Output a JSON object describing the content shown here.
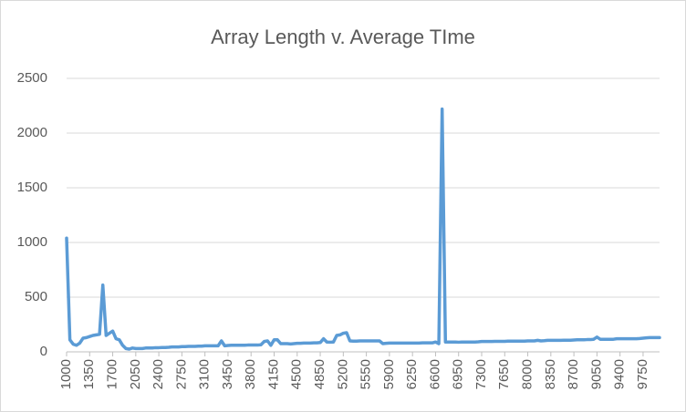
{
  "chart_data": {
    "type": "line",
    "title": "Array Length v. Average TIme",
    "x": [
      1000,
      1050,
      1100,
      1150,
      1200,
      1250,
      1300,
      1350,
      1400,
      1450,
      1500,
      1550,
      1600,
      1650,
      1700,
      1750,
      1800,
      1850,
      1900,
      1950,
      2000,
      2050,
      2100,
      2150,
      2200,
      2250,
      2300,
      2350,
      2400,
      2450,
      2500,
      2550,
      2600,
      2650,
      2700,
      2750,
      2800,
      2850,
      2900,
      2950,
      3000,
      3050,
      3100,
      3150,
      3200,
      3250,
      3300,
      3350,
      3400,
      3450,
      3500,
      3550,
      3600,
      3650,
      3700,
      3750,
      3800,
      3850,
      3900,
      3950,
      4000,
      4050,
      4100,
      4150,
      4200,
      4250,
      4300,
      4350,
      4400,
      4450,
      4500,
      4550,
      4600,
      4650,
      4700,
      4750,
      4800,
      4850,
      4900,
      4950,
      5000,
      5050,
      5100,
      5150,
      5200,
      5250,
      5300,
      5350,
      5400,
      5450,
      5500,
      5550,
      5600,
      5650,
      5700,
      5750,
      5800,
      5850,
      5900,
      5950,
      6000,
      6050,
      6100,
      6150,
      6200,
      6250,
      6300,
      6350,
      6400,
      6450,
      6500,
      6550,
      6600,
      6650,
      6700,
      6750,
      6800,
      6850,
      6900,
      6950,
      7000,
      7050,
      7100,
      7150,
      7200,
      7250,
      7300,
      7350,
      7400,
      7450,
      7500,
      7550,
      7600,
      7650,
      7700,
      7750,
      7800,
      7850,
      7900,
      7950,
      8000,
      8050,
      8100,
      8150,
      8200,
      8250,
      8300,
      8350,
      8400,
      8450,
      8500,
      8550,
      8600,
      8650,
      8700,
      8750,
      8800,
      8850,
      8900,
      8950,
      9000,
      9050,
      9100,
      9150,
      9200,
      9250,
      9300,
      9350,
      9400,
      9450,
      9500,
      9550,
      9600,
      9650,
      9700,
      9750,
      9800,
      9850,
      9900,
      9950,
      10000
    ],
    "values": [
      1040,
      110,
      70,
      60,
      80,
      125,
      130,
      140,
      150,
      155,
      160,
      610,
      150,
      170,
      190,
      120,
      110,
      60,
      30,
      25,
      35,
      30,
      30,
      30,
      35,
      35,
      35,
      38,
      38,
      40,
      40,
      42,
      45,
      45,
      45,
      48,
      48,
      50,
      50,
      50,
      52,
      52,
      55,
      55,
      55,
      55,
      55,
      100,
      55,
      58,
      60,
      60,
      60,
      60,
      60,
      62,
      62,
      62,
      62,
      65,
      95,
      100,
      60,
      110,
      110,
      75,
      75,
      75,
      72,
      75,
      78,
      78,
      80,
      80,
      80,
      82,
      82,
      85,
      120,
      90,
      88,
      90,
      150,
      155,
      170,
      175,
      100,
      98,
      98,
      100,
      100,
      100,
      100,
      100,
      100,
      100,
      75,
      78,
      80,
      80,
      80,
      80,
      80,
      80,
      80,
      80,
      80,
      80,
      82,
      82,
      82,
      82,
      90,
      75,
      2220,
      90,
      90,
      90,
      90,
      88,
      90,
      90,
      90,
      90,
      90,
      92,
      95,
      95,
      95,
      95,
      96,
      96,
      96,
      96,
      98,
      98,
      98,
      98,
      98,
      98,
      100,
      100,
      100,
      105,
      100,
      102,
      105,
      105,
      105,
      105,
      105,
      106,
      106,
      106,
      108,
      110,
      110,
      110,
      112,
      112,
      115,
      135,
      115,
      115,
      115,
      115,
      115,
      120,
      120,
      120,
      120,
      120,
      120,
      120,
      122,
      125,
      128,
      130,
      130,
      130,
      130
    ],
    "color": "#5b9bd5",
    "xlim": [
      1000,
      10000
    ],
    "xticks": [
      1000,
      1350,
      1700,
      2050,
      2400,
      2750,
      3100,
      3450,
      3800,
      4150,
      4500,
      4850,
      5200,
      5550,
      5900,
      6250,
      6600,
      6950,
      7300,
      7650,
      8000,
      8350,
      8700,
      9050,
      9400,
      9750
    ],
    "ylim": [
      0,
      2500
    ],
    "yticks": [
      0,
      500,
      1000,
      1500,
      2000,
      2500
    ],
    "grid": true
  }
}
